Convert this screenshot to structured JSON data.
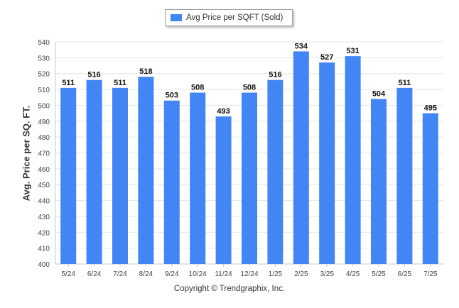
{
  "chart_data": {
    "type": "bar",
    "title": "",
    "xlabel": "",
    "ylabel": "Avg. Price per SQ. FT.",
    "ylim": [
      400,
      540
    ],
    "ytick_step": 10,
    "grid": true,
    "legend_position": "top-center",
    "categories": [
      "5/24",
      "6/24",
      "7/24",
      "8/24",
      "9/24",
      "10/24",
      "11/24",
      "12/24",
      "1/25",
      "2/25",
      "3/25",
      "4/25",
      "5/25",
      "6/25",
      "7/25"
    ],
    "series": [
      {
        "name": "Avg Price per SQFT (Sold)",
        "values": [
          511,
          516,
          511,
          518,
          503,
          508,
          493,
          508,
          516,
          534,
          527,
          531,
          504,
          511,
          495
        ],
        "color": "#4285f4"
      }
    ]
  },
  "footer": {
    "copyright": "Copyright © Trendgraphix, Inc."
  }
}
